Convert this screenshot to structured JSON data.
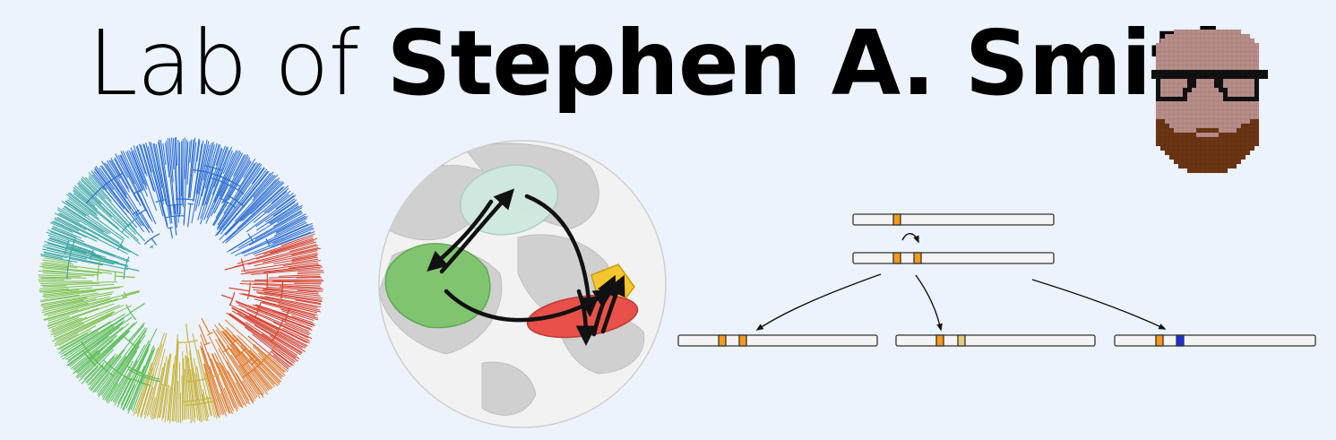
{
  "header": {
    "title_prefix": "Lab of",
    "title_name": "Stephen A. Smith"
  },
  "icons": {
    "avatar": "pixel-art-bearded-face-with-glasses",
    "tree": "circular-phylogenetic-tree",
    "globe": "biogeography-globe",
    "genes": "gene-duplication-diagram"
  },
  "colors": {
    "background": "#ecf3fd",
    "region_teal": "#cfe9df",
    "region_green": "#7cc46b",
    "region_yellow": "#f3c52e",
    "region_red": "#e8504a",
    "gene_orange": "#f39a1e",
    "gene_tan": "#e9c87a",
    "gene_blue": "#1a2ee0",
    "beard": "#6b3514",
    "skin": "#b88d8a"
  }
}
